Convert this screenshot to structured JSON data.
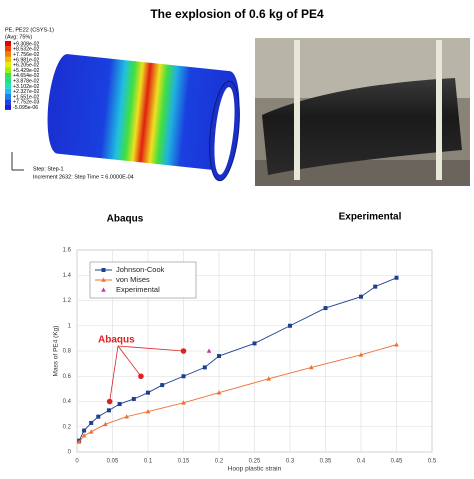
{
  "figure_title": "The explosion of 0.6 kg of PE4",
  "simulation": {
    "legend_title": "PE, PE22 (CSYS-1)",
    "legend_avg": "(Avg: 75%)",
    "legend_values": [
      "+9.308e-02",
      "+8.532e-02",
      "+7.756e-02",
      "+6.981e-02",
      "+6.205e-02",
      "+5.429e-02",
      "+4.654e-02",
      "+3.878e-02",
      "+3.102e-02",
      "+2.327e-02",
      "+1.551e-02",
      "+7.752e-03",
      "-5.095e-06"
    ],
    "step": "Step: Step-1",
    "increment": "Increment    2632: Step Time =    6.0000E-04"
  },
  "captions": [
    "Abaqus",
    "Experimental"
  ],
  "chart_data": {
    "type": "line",
    "xlabel": "Hoop plastic strain",
    "ylabel": "Mass of PE4 (Kg)",
    "xlim": [
      0,
      0.5
    ],
    "xticks": [
      0,
      0.05,
      0.1,
      0.15,
      0.2,
      0.25,
      0.3,
      0.35,
      0.4,
      0.45,
      0.5
    ],
    "ylim": [
      0,
      1.6
    ],
    "yticks": [
      0,
      0.2,
      0.4,
      0.6,
      0.8,
      1,
      1.2,
      1.4,
      1.6
    ],
    "series": [
      {
        "name": "Johnson-Cook",
        "color": "#1f3f8f",
        "marker": "square",
        "x": [
          0.003,
          0.01,
          0.02,
          0.03,
          0.045,
          0.06,
          0.08,
          0.1,
          0.12,
          0.15,
          0.18,
          0.2,
          0.25,
          0.3,
          0.35,
          0.4,
          0.42,
          0.45
        ],
        "values": [
          0.09,
          0.17,
          0.23,
          0.28,
          0.33,
          0.38,
          0.42,
          0.47,
          0.53,
          0.6,
          0.67,
          0.76,
          0.86,
          1.0,
          1.14,
          1.23,
          1.31,
          1.38
        ]
      },
      {
        "name": "von Mises",
        "color": "#f07030",
        "marker": "triangle",
        "x": [
          0.003,
          0.01,
          0.02,
          0.04,
          0.07,
          0.1,
          0.15,
          0.2,
          0.27,
          0.33,
          0.4,
          0.45
        ],
        "values": [
          0.08,
          0.13,
          0.16,
          0.22,
          0.28,
          0.32,
          0.39,
          0.47,
          0.58,
          0.67,
          0.77,
          0.85
        ]
      },
      {
        "name": "Experimental",
        "color": "#cc3399",
        "marker": "triangle",
        "line": false,
        "x": [
          0.186
        ],
        "values": [
          0.8
        ]
      }
    ],
    "annotation": {
      "text": "Abaqus",
      "color": "#dd2222",
      "x": [
        0.046,
        0.09,
        0.15
      ],
      "values": [
        0.4,
        0.6,
        0.8
      ]
    }
  }
}
